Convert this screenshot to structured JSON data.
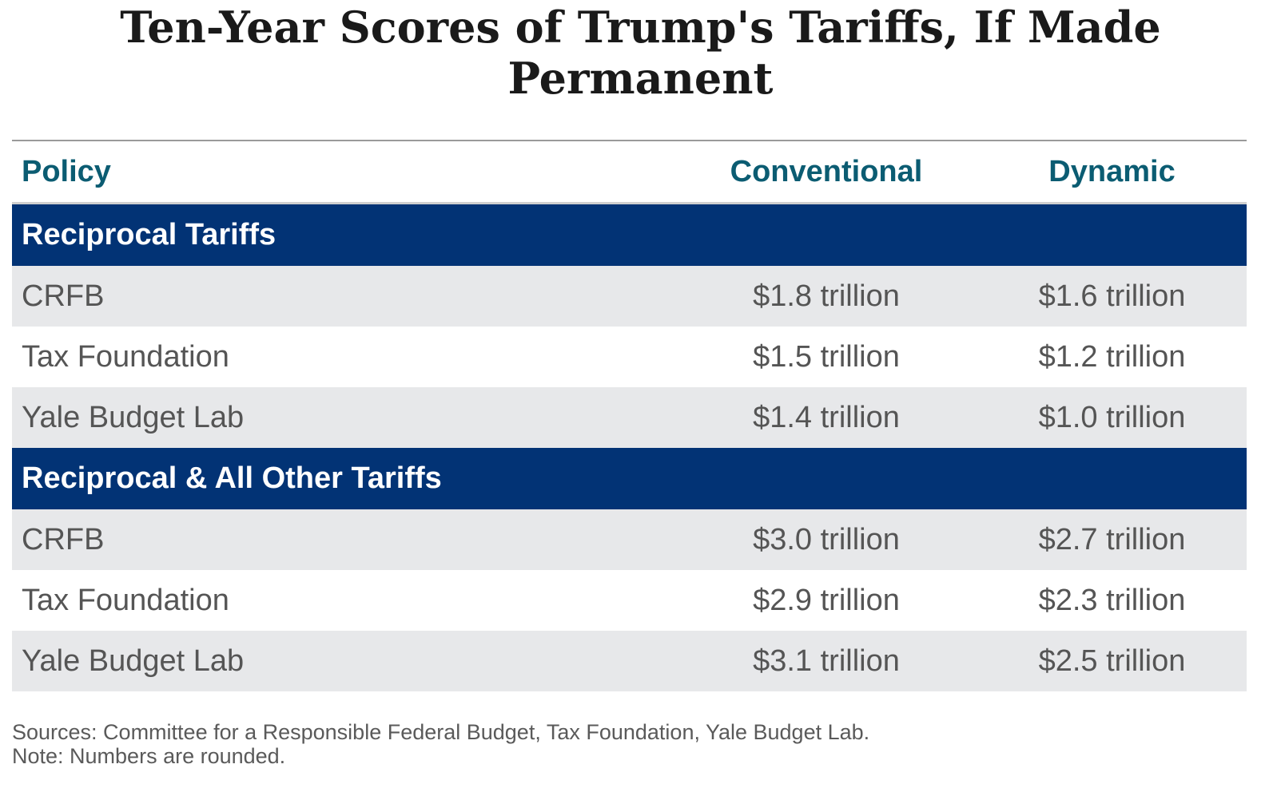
{
  "title": "Ten-Year Scores of Trump's Tariffs, If Made Permanent",
  "headers": {
    "policy": "Policy",
    "conventional": "Conventional",
    "dynamic": "Dynamic"
  },
  "sections": [
    {
      "label": "Reciprocal Tariffs",
      "rows": [
        {
          "source": "CRFB",
          "conventional": "$1.8 trillion",
          "dynamic": "$1.6 trillion"
        },
        {
          "source": "Tax Foundation",
          "conventional": "$1.5 trillion",
          "dynamic": "$1.2 trillion"
        },
        {
          "source": "Yale Budget Lab",
          "conventional": "$1.4 trillion",
          "dynamic": "$1.0 trillion"
        }
      ]
    },
    {
      "label": "Reciprocal & All Other Tariffs",
      "rows": [
        {
          "source": "CRFB",
          "conventional": "$3.0 trillion",
          "dynamic": "$2.7 trillion"
        },
        {
          "source": "Tax Foundation",
          "conventional": "$2.9 trillion",
          "dynamic": "$2.3 trillion"
        },
        {
          "source": "Yale Budget Lab",
          "conventional": "$3.1 trillion",
          "dynamic": "$2.5 trillion"
        }
      ]
    }
  ],
  "footer": {
    "sources": "Sources: Committee for a Responsible Federal Budget, Tax Foundation, Yale Budget Lab.",
    "note": "Note: Numbers are rounded."
  },
  "colors": {
    "section_bg": "#023375",
    "header_text": "#0b5c72",
    "shaded_row": "#e7e8ea"
  }
}
